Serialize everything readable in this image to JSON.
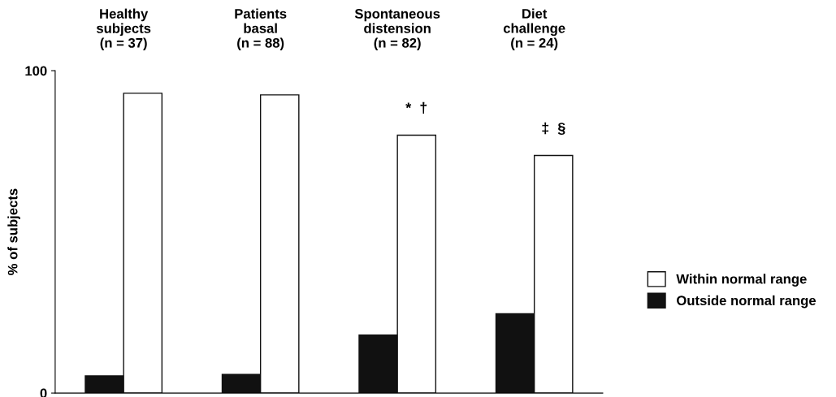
{
  "chart_data": {
    "type": "bar",
    "ylabel": "% of subjects",
    "categories": [
      "Healthy\nsubjects\n(n = 37)",
      "Patients\nbasal\n(n = 88)",
      "Spontaneous\ndistension\n(n = 82)",
      "Diet\nchallenge\n(n = 24)"
    ],
    "series": [
      {
        "name": "Outside normal range",
        "color": "#111111",
        "values": [
          5.3,
          5.8,
          18,
          24.6
        ]
      },
      {
        "name": "Within normal range",
        "color": "#ffffff",
        "values": [
          93,
          92.5,
          80,
          73.7
        ]
      }
    ],
    "ylim": [
      0,
      100
    ],
    "yticks": [
      0,
      100
    ],
    "grid": false,
    "legend": "right",
    "annotations": [
      "*  †",
      "‡  §"
    ]
  }
}
